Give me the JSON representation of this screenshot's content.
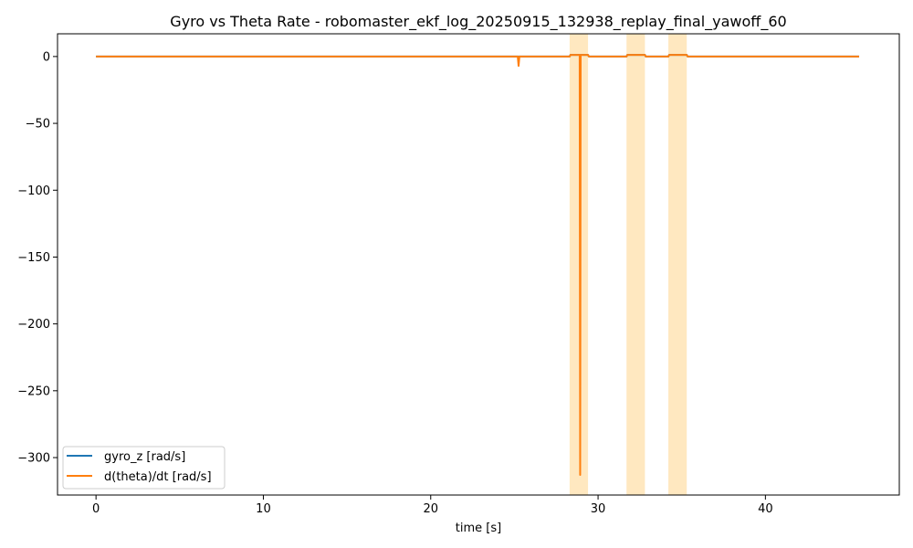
{
  "chart_data": {
    "type": "line",
    "title": "Gyro vs Theta Rate - robomaster_ekf_log_20250915_132938_replay_final_yawoff_60",
    "xlabel": "time [s]",
    "ylabel": "",
    "xlim": [
      -2.3,
      48.0
    ],
    "ylim": [
      -328,
      17
    ],
    "xticks": [
      0,
      10,
      20,
      30,
      40
    ],
    "yticks": [
      0,
      -50,
      -100,
      -150,
      -200,
      -250,
      -300
    ],
    "ytick_labels": [
      "0",
      "−50",
      "−100",
      "−150",
      "−200",
      "−250",
      "−300"
    ],
    "grid": false,
    "legend_position": "lower-left",
    "highlight_spans": [
      {
        "x0": 28.3,
        "x1": 29.4
      },
      {
        "x0": 31.7,
        "x1": 32.8
      },
      {
        "x0": 34.2,
        "x1": 35.3
      }
    ],
    "highlight_color": "#ffe4b5",
    "series": [
      {
        "name": "gyro_z [rad/s]",
        "color": "#1f77b4",
        "x": [
          0,
          28.3,
          28.35,
          29.4,
          29.45,
          31.7,
          31.75,
          32.8,
          32.85,
          34.2,
          34.25,
          35.3,
          35.35,
          45.6
        ],
        "y": [
          0,
          0,
          1.2,
          1.2,
          0,
          0,
          1.2,
          1.2,
          0,
          0,
          1.2,
          1.2,
          0,
          0
        ]
      },
      {
        "name": "d(theta)/dt [rad/s]",
        "color": "#ff7f0e",
        "x": [
          0,
          25.2,
          25.25,
          25.3,
          25.35,
          28.3,
          28.35,
          28.9,
          28.93,
          28.96,
          29.4,
          29.45,
          31.7,
          31.75,
          32.8,
          32.85,
          34.2,
          34.25,
          35.3,
          35.35,
          45.6
        ],
        "y": [
          0,
          0,
          -7,
          0,
          0,
          0,
          1.2,
          1.2,
          -313,
          1.2,
          1.2,
          0,
          0,
          1.2,
          1.2,
          0,
          0,
          1.2,
          1.2,
          0,
          0
        ]
      }
    ]
  }
}
